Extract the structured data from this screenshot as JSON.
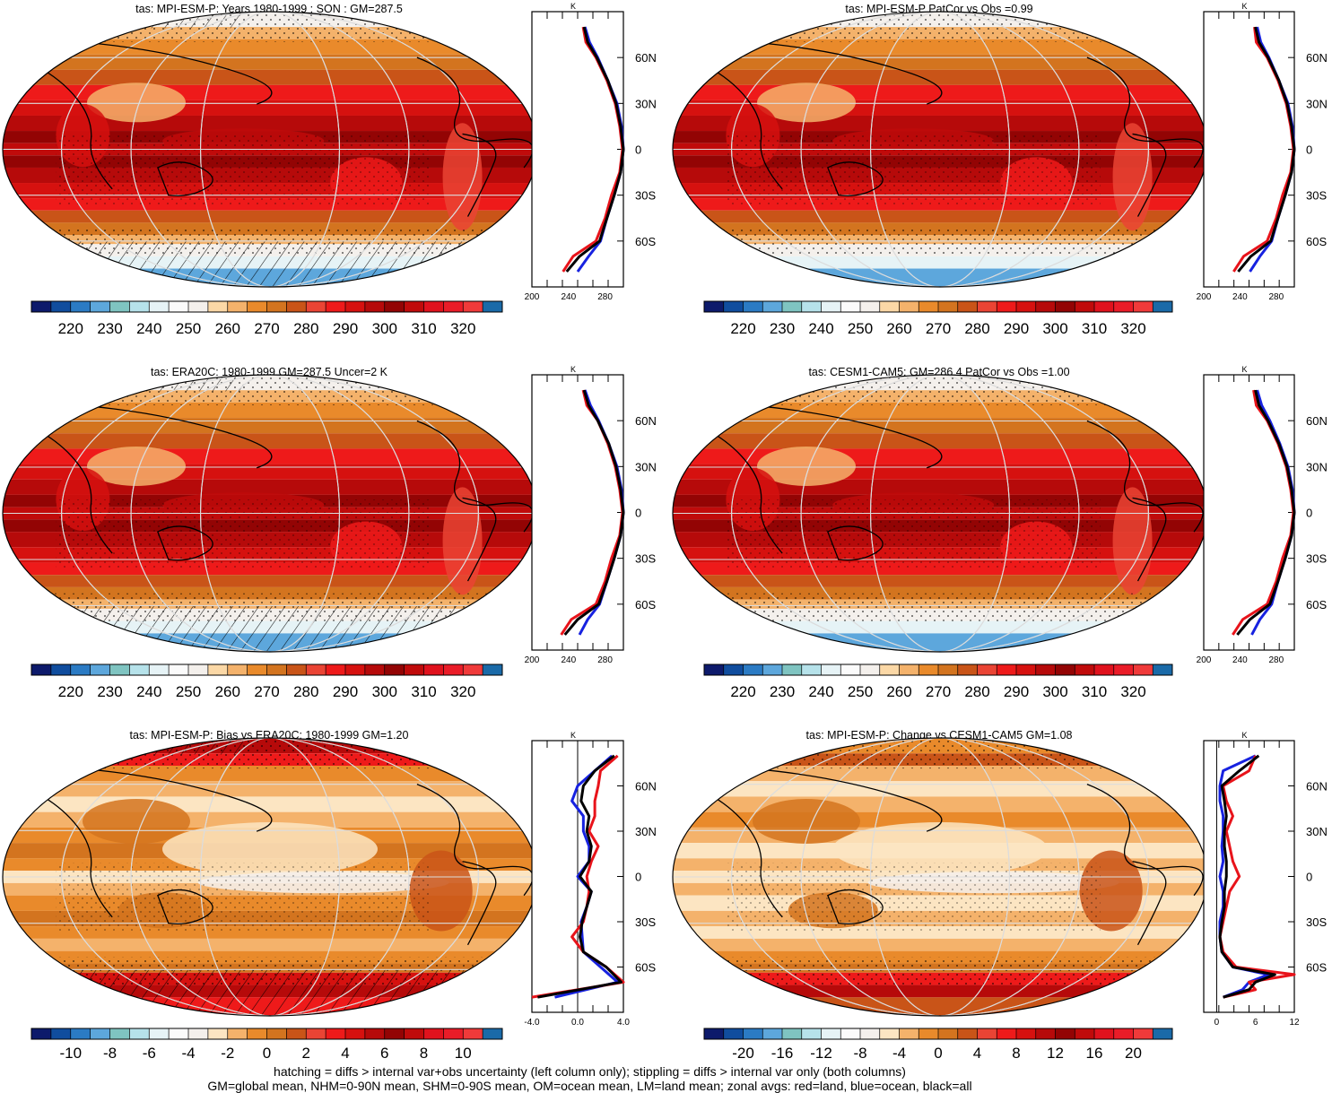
{
  "panels": [
    {
      "title": "tas: MPI-ESM-P: Years 1980-1999 : SON : GM=287.5",
      "kind": "abs",
      "hatch": true,
      "colorbar": {
        "labels": [
          "220",
          "230",
          "240",
          "250",
          "260",
          "270",
          "280",
          "290",
          "300",
          "310",
          "320"
        ]
      },
      "zonal": {
        "xlim": [
          200,
          300
        ],
        "xticks": [
          "200",
          "240",
          "280"
        ],
        "zero_line": false
      }
    },
    {
      "title": "tas: MPI-ESM-P PatCor vs Obs =0.99",
      "kind": "abs",
      "hatch": false,
      "colorbar": {
        "labels": [
          "220",
          "230",
          "240",
          "250",
          "260",
          "270",
          "280",
          "290",
          "300",
          "310",
          "320"
        ]
      },
      "zonal": {
        "xlim": [
          200,
          300
        ],
        "xticks": [
          "200",
          "240",
          "280"
        ],
        "zero_line": false
      }
    },
    {
      "title": "tas: ERA20C: 1980-1999 GM=287.5 Uncer=2 K",
      "kind": "abs",
      "hatch": true,
      "colorbar": {
        "labels": [
          "220",
          "230",
          "240",
          "250",
          "260",
          "270",
          "280",
          "290",
          "300",
          "310",
          "320"
        ]
      },
      "zonal": {
        "xlim": [
          200,
          300
        ],
        "xticks": [
          "200",
          "240",
          "280"
        ],
        "zero_line": false
      }
    },
    {
      "title": "tas: CESM1-CAM5: GM=286.4 PatCor vs Obs =1.00",
      "kind": "abs",
      "hatch": false,
      "colorbar": {
        "labels": [
          "220",
          "230",
          "240",
          "250",
          "260",
          "270",
          "280",
          "290",
          "300",
          "310",
          "320"
        ]
      },
      "zonal": {
        "xlim": [
          200,
          300
        ],
        "xticks": [
          "200",
          "240",
          "280"
        ],
        "zero_line": false
      }
    },
    {
      "title": "tas: MPI-ESM-P: Bias vs ERA20C: 1980-1999  GM=1.20",
      "kind": "bias",
      "hatch": true,
      "colorbar": {
        "labels": [
          "-10",
          "-8",
          "-6",
          "-4",
          "-2",
          "0",
          "2",
          "4",
          "6",
          "8",
          "10"
        ]
      },
      "zonal": {
        "xlim": [
          -4,
          4
        ],
        "xticks": [
          "-4.0",
          "0.0",
          "4.0"
        ],
        "zero_line": true
      }
    },
    {
      "title": "tas: MPI-ESM-P: Change vs CESM1-CAM5 GM=1.08",
      "kind": "change",
      "hatch": false,
      "colorbar": {
        "labels": [
          "-20",
          "-16",
          "-12",
          "-8",
          "-4",
          "0",
          "4",
          "8",
          "12",
          "16",
          "20"
        ]
      },
      "zonal": {
        "xlim": [
          -2,
          12
        ],
        "xticks": [
          "0",
          "6",
          "12"
        ],
        "zero_line": true
      }
    }
  ],
  "lat_labels": [
    "60N",
    "30N",
    "0",
    "30S",
    "60S"
  ],
  "unit_label": "K",
  "palette": {
    "abs": [
      "#0d1a6b",
      "#104d9e",
      "#2b7bc4",
      "#5da7dc",
      "#7fc4c1",
      "#b6e2ea",
      "#e6f3f6",
      "#fbfbfb",
      "#f4f0ec",
      "#fbd8a6",
      "#f4b26b",
      "#e98a2b",
      "#d3741f",
      "#c95418",
      "#ea4434",
      "#ee1a1a",
      "#d6110f",
      "#b60a0a",
      "#930404",
      "#c00b0b",
      "#e0121d",
      "#ea1c28",
      "#f03a3a",
      "#1a6aa8"
    ],
    "bias": [
      "#0d1a6b",
      "#104d9e",
      "#2b7bc4",
      "#5da7dc",
      "#7fc4c1",
      "#b6e2ea",
      "#e6f3f6",
      "#fbfbfb",
      "#f4f0ec",
      "#fce5c2",
      "#f4b26b",
      "#e98a2b",
      "#d3741f",
      "#c95418",
      "#ea4434",
      "#ee1a1a",
      "#d6110f",
      "#b60a0a",
      "#930404",
      "#c00b0b",
      "#e0121d",
      "#ea1c28",
      "#f03a3a",
      "#1a6aa8"
    ],
    "zonal_land": "#e8131a",
    "zonal_ocean": "#1722e0",
    "zonal_all": "#000000"
  },
  "chart_data": [
    {
      "type": "heatmap",
      "title": "tas: MPI-ESM-P: Years 1980-1999 : SON : GM=287.5",
      "units": "K",
      "colorbar_range": [
        215,
        325
      ],
      "zonal_mean": {
        "lat": [
          80,
          70,
          60,
          45,
          30,
          15,
          0,
          -15,
          -30,
          -45,
          -60,
          -70,
          -80
        ],
        "land": [
          256,
          259,
          270,
          282,
          291,
          296,
          299,
          296,
          287,
          280,
          270,
          245,
          234
        ],
        "ocean": [
          258,
          263,
          272,
          283,
          293,
          298,
          300,
          297,
          290,
          282,
          275,
          262,
          250
        ],
        "all": [
          257,
          261,
          271,
          283,
          292,
          297,
          300,
          297,
          290,
          282,
          274,
          252,
          238
        ]
      }
    },
    {
      "type": "heatmap",
      "title": "tas: MPI-ESM-P PatCor vs Obs =0.99",
      "units": "K",
      "colorbar_range": [
        215,
        325
      ],
      "zonal_mean": {
        "lat": [
          80,
          70,
          60,
          45,
          30,
          15,
          0,
          -15,
          -30,
          -45,
          -60,
          -70,
          -80
        ],
        "land": [
          256,
          258,
          270,
          282,
          291,
          296,
          299,
          296,
          287,
          280,
          270,
          244,
          233
        ],
        "ocean": [
          259,
          263,
          272,
          283,
          293,
          298,
          300,
          297,
          290,
          282,
          275,
          262,
          251
        ],
        "all": [
          257,
          261,
          271,
          283,
          292,
          297,
          300,
          297,
          290,
          282,
          274,
          252,
          238
        ]
      }
    },
    {
      "type": "heatmap",
      "title": "tas: ERA20C: 1980-1999 GM=287.5 Uncer=2 K",
      "units": "K",
      "colorbar_range": [
        215,
        325
      ],
      "zonal_mean": {
        "lat": [
          80,
          70,
          60,
          45,
          30,
          15,
          0,
          -15,
          -30,
          -45,
          -60,
          -70,
          -80
        ],
        "land": [
          256,
          260,
          272,
          283,
          291,
          296,
          299,
          296,
          287,
          280,
          270,
          243,
          232
        ],
        "ocean": [
          258,
          264,
          273,
          284,
          293,
          298,
          300,
          297,
          290,
          282,
          274,
          261,
          252
        ],
        "all": [
          257,
          262,
          272,
          284,
          292,
          297,
          300,
          297,
          290,
          282,
          273,
          250,
          236
        ]
      }
    },
    {
      "type": "heatmap",
      "title": "tas: CESM1-CAM5: GM=286.4 PatCor vs Obs =1.00",
      "units": "K",
      "colorbar_range": [
        215,
        325
      ],
      "zonal_mean": {
        "lat": [
          80,
          70,
          60,
          45,
          30,
          15,
          0,
          -15,
          -30,
          -45,
          -60,
          -70,
          -80
        ],
        "land": [
          255,
          258,
          270,
          282,
          291,
          296,
          299,
          296,
          287,
          280,
          270,
          243,
          232
        ],
        "ocean": [
          259,
          264,
          273,
          284,
          293,
          298,
          300,
          297,
          290,
          282,
          275,
          262,
          253
        ],
        "all": [
          257,
          261,
          271,
          283,
          292,
          297,
          300,
          297,
          290,
          282,
          273,
          251,
          237
        ]
      }
    },
    {
      "type": "heatmap",
      "title": "tas: MPI-ESM-P: Bias vs ERA20C: 1980-1999  GM=1.20",
      "units": "K",
      "colorbar_range": [
        -11,
        11
      ],
      "zonal_mean": {
        "lat": [
          80,
          70,
          60,
          50,
          40,
          30,
          20,
          10,
          0,
          -10,
          -20,
          -30,
          -40,
          -50,
          -60,
          -70,
          -80
        ],
        "land": [
          3.5,
          2.0,
          1.8,
          1.5,
          1.5,
          1.0,
          1.8,
          1.2,
          0.8,
          1.0,
          0.8,
          0.5,
          -0.5,
          0.5,
          2.5,
          4.0,
          -4.0
        ],
        "ocean": [
          3.0,
          1.5,
          0.0,
          -0.5,
          0.5,
          0.5,
          1.0,
          1.0,
          0.0,
          1.2,
          0.8,
          0.3,
          0.4,
          0.5,
          2.0,
          3.5,
          -2.0
        ],
        "all": [
          3.2,
          1.5,
          0.5,
          0.3,
          1.0,
          0.8,
          1.2,
          1.0,
          0.2,
          1.2,
          0.8,
          0.4,
          0.2,
          0.5,
          2.5,
          3.8,
          -3.5
        ]
      }
    },
    {
      "type": "heatmap",
      "title": "tas: MPI-ESM-P: Change vs CESM1-CAM5 GM=1.08",
      "units": "K",
      "colorbar_range": [
        -22,
        22
      ],
      "zonal_mean": {
        "lat": [
          80,
          70,
          60,
          50,
          40,
          30,
          20,
          10,
          0,
          -10,
          -20,
          -30,
          -40,
          -50,
          -60,
          -65,
          -70,
          -75,
          -80
        ],
        "land": [
          6.0,
          5.0,
          1.0,
          1.5,
          2.5,
          1.5,
          2.0,
          2.5,
          3.5,
          2.0,
          1.5,
          1.0,
          0.5,
          1.0,
          3.0,
          12.0,
          5.0,
          6.0,
          1.0
        ],
        "ocean": [
          6.0,
          1.0,
          0.5,
          0.5,
          1.0,
          1.0,
          0.8,
          1.0,
          0.5,
          1.0,
          1.0,
          0.5,
          0.5,
          0.8,
          2.5,
          8.0,
          5.0,
          4.0,
          1.0
        ],
        "all": [
          6.5,
          3.5,
          0.8,
          1.2,
          1.5,
          1.2,
          1.2,
          1.5,
          1.5,
          1.2,
          1.2,
          0.8,
          0.5,
          0.8,
          2.5,
          9.0,
          6.0,
          5.0,
          1.0
        ]
      }
    }
  ],
  "footnote": [
    "hatching = diffs > internal var+obs uncertainty (left column only); stippling = diffs > internal var only (both columns)",
    "GM=global mean, NHM=0-90N mean, SHM=0-90S mean, OM=ocean mean, LM=land mean; zonal avgs: red=land, blue=ocean, black=all"
  ]
}
